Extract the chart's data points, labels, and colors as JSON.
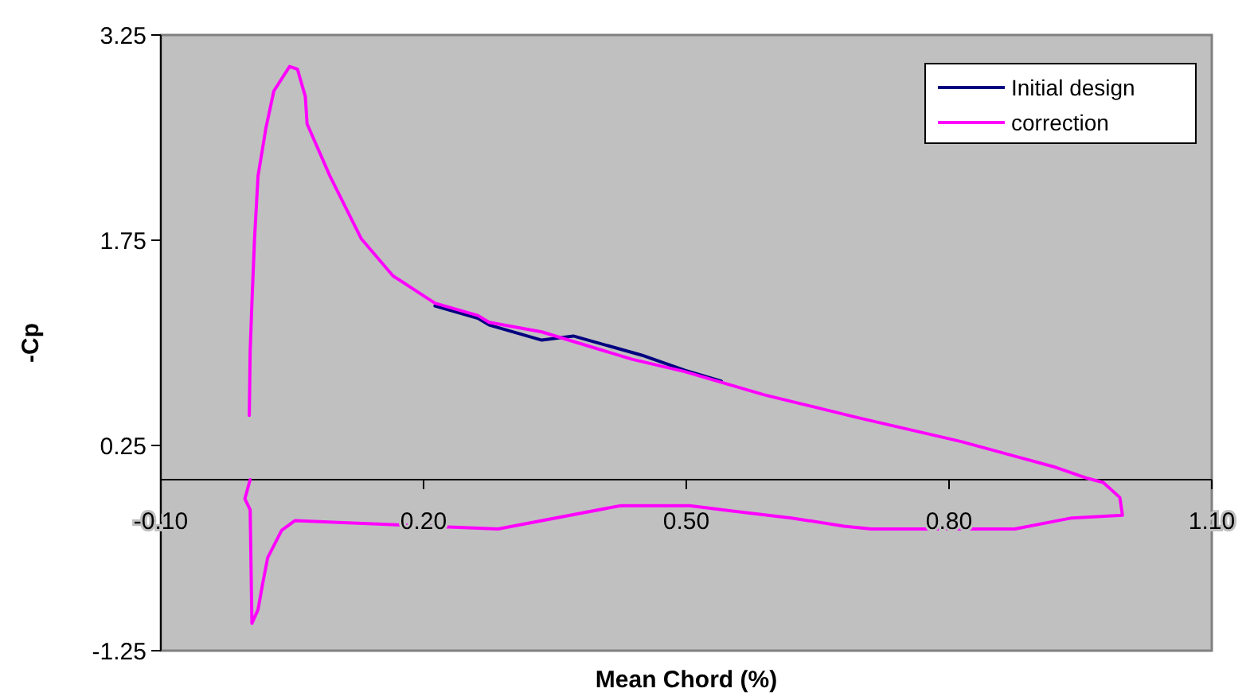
{
  "chart_data": {
    "type": "line",
    "xlabel": "Mean Chord (%)",
    "ylabel": "-Cp",
    "xlim": [
      -0.1,
      1.1
    ],
    "xticks": [
      {
        "value": -0.1,
        "label": "-0.10"
      },
      {
        "value": 0.2,
        "label": "0.20"
      },
      {
        "value": 0.5,
        "label": "0.50"
      },
      {
        "value": 0.8,
        "label": "0.80"
      },
      {
        "value": 1.1,
        "label": "1.10"
      }
    ],
    "ylim": [
      -1.25,
      3.25
    ],
    "yticks": [
      {
        "value": -1.25,
        "label": "-1.25"
      },
      {
        "value": 0.25,
        "label": "0.25"
      },
      {
        "value": 1.75,
        "label": "1.75"
      },
      {
        "value": 3.25,
        "label": "3.25"
      }
    ],
    "grid": false,
    "legend": "top right",
    "marker": "none",
    "line_style": "solid",
    "series": [
      {
        "name": "Initial design",
        "color": "#000080",
        "x": [
          0.213,
          0.262,
          0.275,
          0.335,
          0.371,
          0.449,
          0.498,
          0.54
        ],
        "values": [
          1.27,
          1.18,
          1.13,
          1.02,
          1.05,
          0.91,
          0.8,
          0.72
        ]
      },
      {
        "name": "correction",
        "color": "#ff00ff",
        "x": [
          0.001,
          0.002,
          0.004,
          0.007,
          0.011,
          0.02,
          0.029,
          0.047,
          0.056,
          0.065,
          0.067,
          0.093,
          0.129,
          0.165,
          0.213,
          0.262,
          0.275,
          0.335,
          0.438,
          0.498,
          0.589,
          0.698,
          0.813,
          0.922,
          0.958,
          0.976,
          0.995,
          0.998,
          0.94,
          0.875,
          0.711,
          0.68,
          0.62,
          0.553,
          0.504,
          0.425,
          0.285,
          0.053,
          0.038,
          0.022,
          0.016,
          0.011,
          0.004,
          0.002,
          -0.004,
          0.002
        ],
        "values": [
          0.47,
          0.94,
          1.29,
          1.76,
          2.22,
          2.57,
          2.84,
          3.02,
          3.0,
          2.8,
          2.6,
          2.22,
          1.76,
          1.49,
          1.29,
          1.2,
          1.15,
          1.08,
          0.88,
          0.79,
          0.62,
          0.45,
          0.28,
          0.09,
          0.01,
          -0.02,
          -0.13,
          -0.26,
          -0.28,
          -0.36,
          -0.36,
          -0.34,
          -0.28,
          -0.23,
          -0.19,
          -0.19,
          -0.36,
          -0.3,
          -0.37,
          -0.57,
          -0.77,
          -0.95,
          -1.05,
          -0.22,
          -0.14,
          0.0
        ]
      }
    ]
  }
}
